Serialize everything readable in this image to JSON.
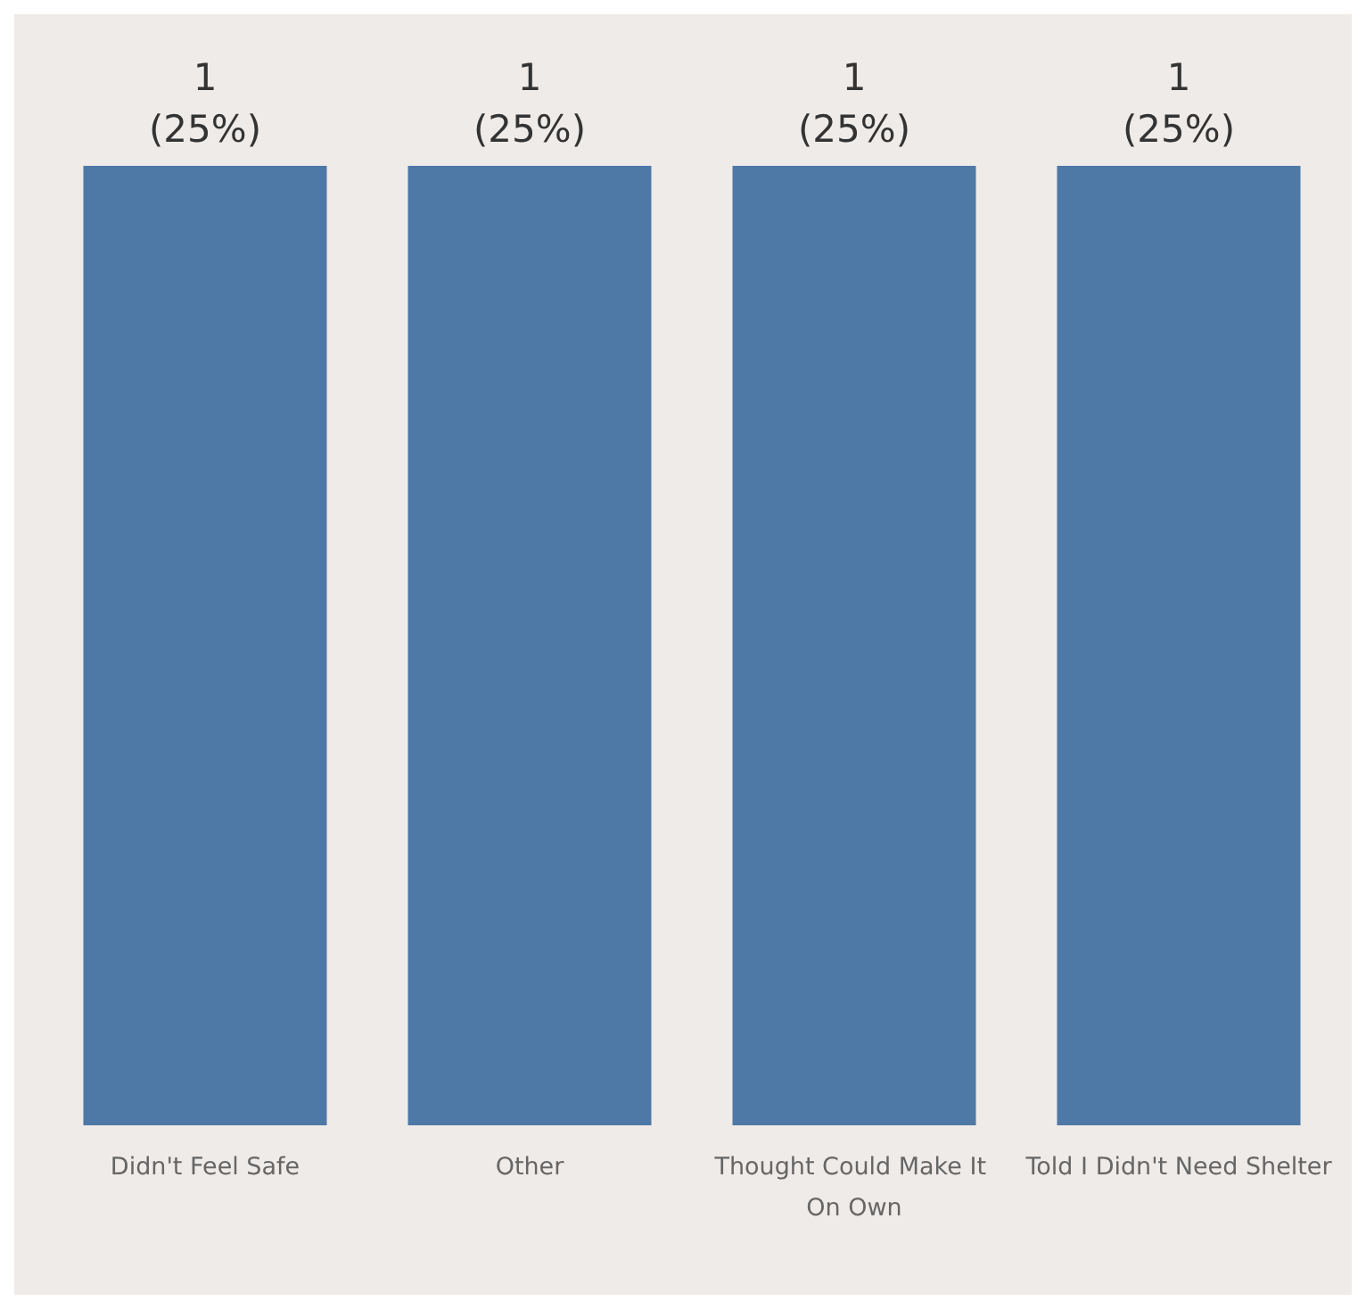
{
  "chart_data": {
    "type": "bar",
    "categories": [
      "Didn't Feel Safe",
      "Other",
      "Thought Could Make It On Own",
      "Told I Didn't Need Shelter"
    ],
    "values": [
      1,
      1,
      1,
      1
    ],
    "color": "#4e78a6",
    "value_labels": [
      "1\n(25%)",
      "1\n(25%)",
      "1\n(25%)",
      "1\n(25%)"
    ]
  }
}
